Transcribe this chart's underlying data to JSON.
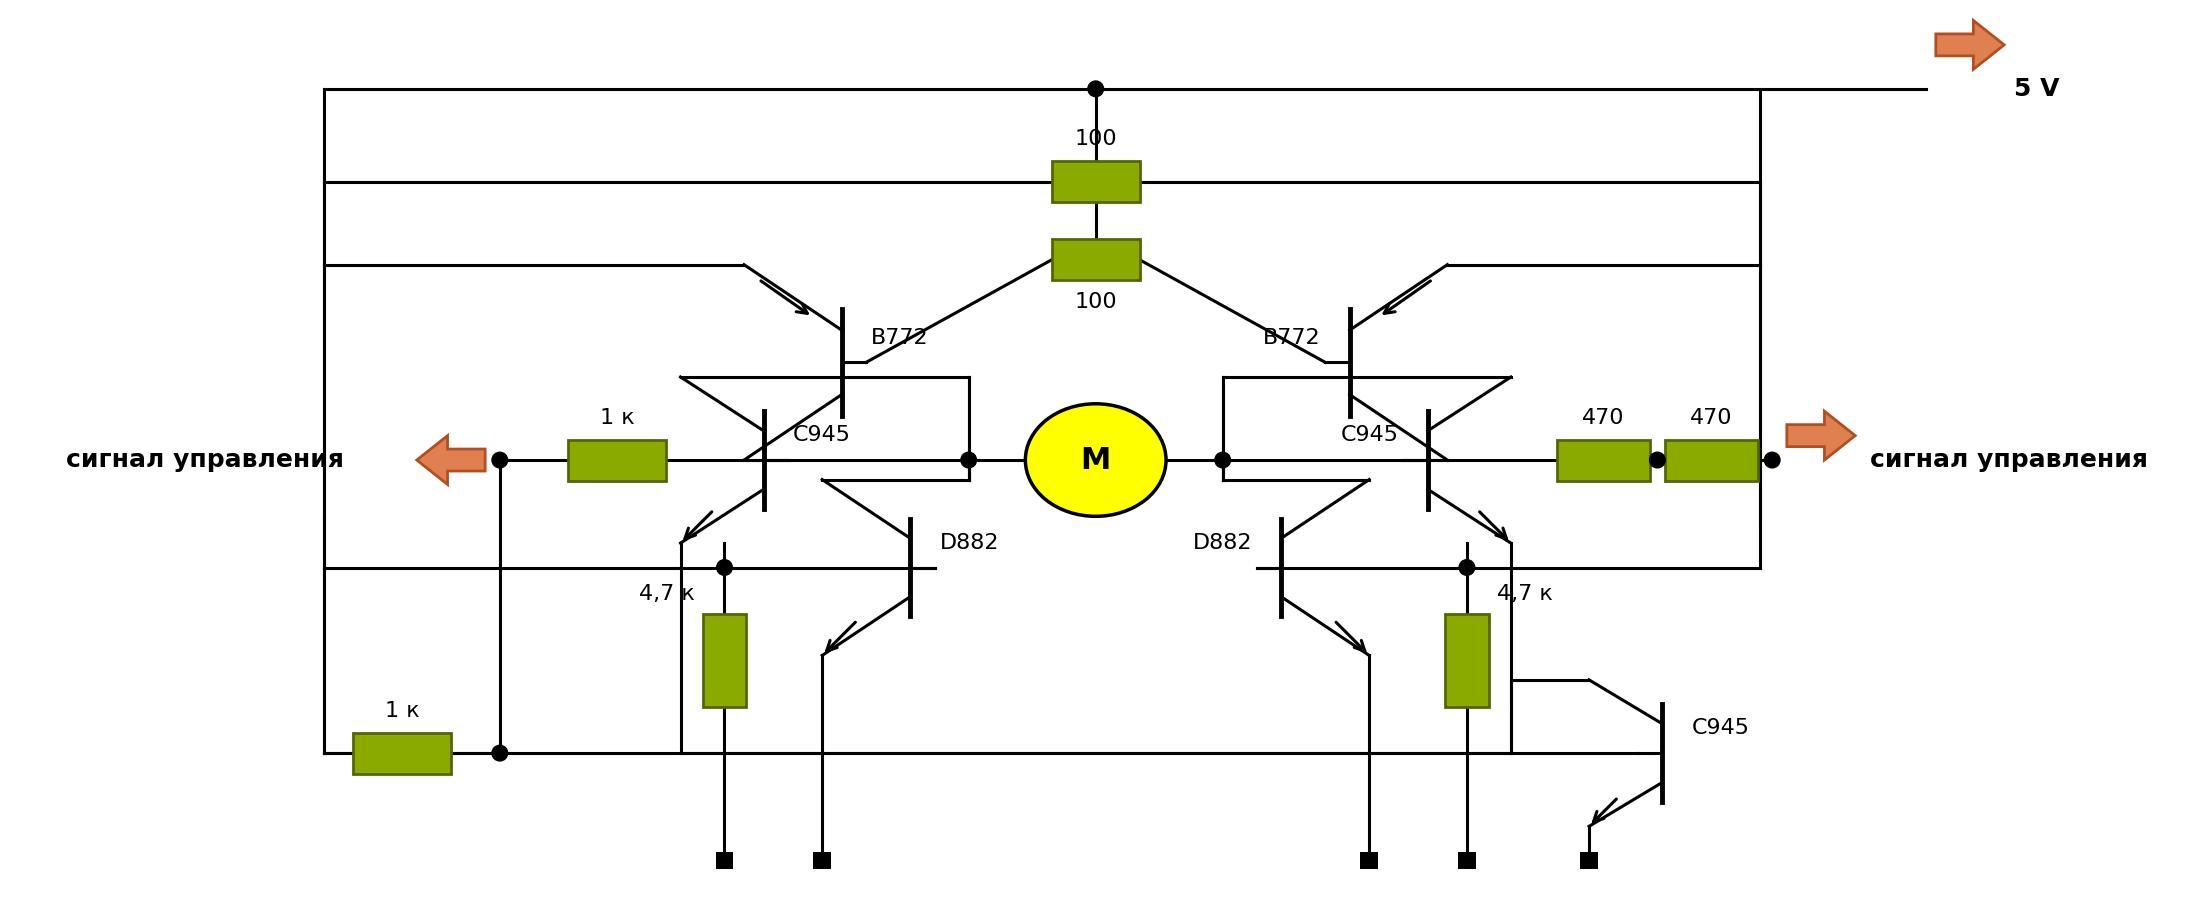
{
  "bg_color": "#ffffff",
  "line_color": "#000000",
  "resistor_color": "#8aaa00",
  "resistor_border": "#556600",
  "motor_fill": "#ffff00",
  "motor_border": "#000000",
  "arrow_color": "#e08050",
  "arrow_border": "#b05020",
  "dot_color": "#000000",
  "text_color": "#000000",
  "label_5v": "5 V",
  "label_signal_left": "сигнал управления",
  "label_signal_right": "сигнал управления",
  "label_motor": "M",
  "figsize": [
    22.11,
    9.24
  ],
  "dpi": 100
}
